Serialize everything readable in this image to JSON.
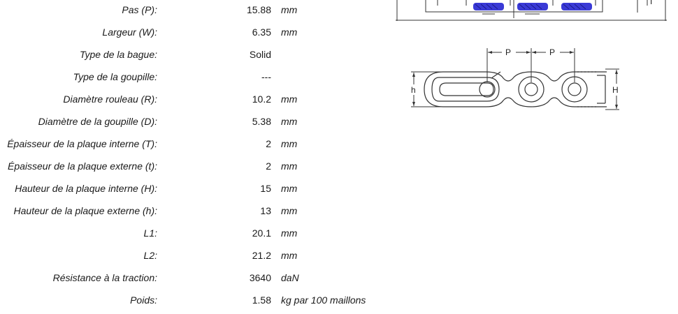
{
  "specs": [
    {
      "label": "Pas (P):",
      "value": "15.88",
      "unit": "mm"
    },
    {
      "label": "Largeur (W):",
      "value": "6.35",
      "unit": "mm"
    },
    {
      "label": "Type de la bague:",
      "value": "Solid",
      "unit": ""
    },
    {
      "label": "Type de la goupille:",
      "value": "---",
      "unit": ""
    },
    {
      "label": "Diamètre rouleau (R):",
      "value": "10.2",
      "unit": "mm"
    },
    {
      "label": "Diamètre de la goupille (D):",
      "value": "5.38",
      "unit": "mm"
    },
    {
      "label": "Épaisseur de la plaque interne (T):",
      "value": "2",
      "unit": "mm"
    },
    {
      "label": "Épaisseur de la plaque externe (t):",
      "value": "2",
      "unit": "mm"
    },
    {
      "label": "Hauteur de la plaque interne (H):",
      "value": "15",
      "unit": "mm"
    },
    {
      "label": "Hauteur de la plaque externe (h):",
      "value": "13",
      "unit": "mm"
    },
    {
      "label": "L1:",
      "value": "20.1",
      "unit": "mm"
    },
    {
      "label": "L2:",
      "value": "21.2",
      "unit": "mm"
    },
    {
      "label": "Résistance à la traction:",
      "value": "3640",
      "unit": "daN"
    },
    {
      "label": "Poids:",
      "value": "1.58",
      "unit": "kg par 100 maillons"
    }
  ],
  "diagram": {
    "pitch_label_1": "P",
    "pitch_label_2": "P",
    "inner_height_label": "H",
    "outer_height_label": "h",
    "top_view_label": "T",
    "roller_color": "#3a3ad6"
  }
}
